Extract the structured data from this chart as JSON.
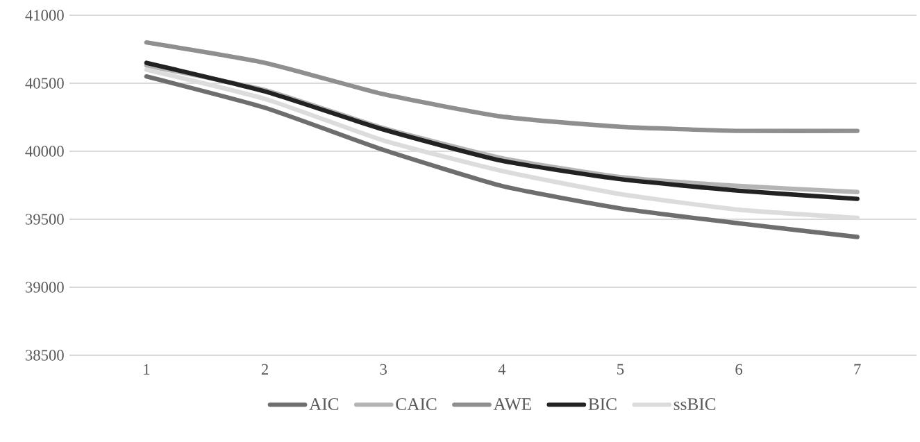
{
  "chart_data": {
    "type": "line",
    "categories": [
      "1",
      "2",
      "3",
      "4",
      "5",
      "6",
      "7"
    ],
    "series": [
      {
        "name": "AIC",
        "color": "#6e6e6e",
        "values": [
          40550,
          40320,
          40010,
          39745,
          39580,
          39470,
          39370
        ]
      },
      {
        "name": "CAIC",
        "color": "#b4b4b4",
        "values": [
          40630,
          40450,
          40170,
          39950,
          39810,
          39745,
          39700
        ]
      },
      {
        "name": "AWE",
        "color": "#8f8f8f",
        "values": [
          40800,
          40650,
          40420,
          40255,
          40180,
          40150,
          40150
        ]
      },
      {
        "name": "BIC",
        "color": "#222222",
        "values": [
          40650,
          40440,
          40160,
          39930,
          39795,
          39710,
          39650
        ]
      },
      {
        "name": "ssBIC",
        "color": "#dcdcdc",
        "values": [
          40600,
          40385,
          40080,
          39855,
          39685,
          39570,
          39510
        ]
      }
    ],
    "ylim": [
      38500,
      41000
    ],
    "yticks": [
      38500,
      39000,
      39500,
      40000,
      40500,
      41000
    ],
    "grid": "y",
    "legend": "bottom",
    "marker": "none",
    "line_style": "solid"
  }
}
